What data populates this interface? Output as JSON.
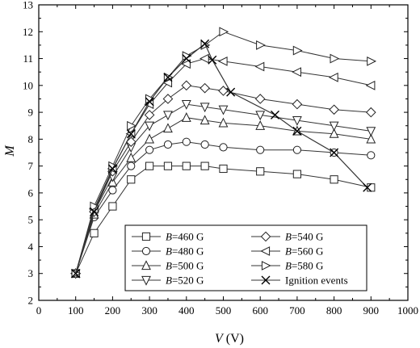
{
  "chart_data": {
    "type": "line",
    "xlabel_var": "V",
    "xlabel_unit": " (V)",
    "ylabel": "M",
    "xlim": [
      0,
      1000
    ],
    "ylim": [
      2,
      13
    ],
    "xticks": [
      0,
      100,
      200,
      300,
      400,
      500,
      600,
      700,
      800,
      900,
      1000
    ],
    "yticks": [
      2,
      3,
      4,
      5,
      6,
      7,
      8,
      9,
      10,
      11,
      12,
      13
    ],
    "grid": false,
    "legend_position": "bottom-center",
    "series": [
      {
        "var": "B",
        "name": "=460 G",
        "marker": "square",
        "x": [
          100,
          150,
          200,
          250,
          300,
          350,
          400,
          450,
          500,
          600,
          700,
          800,
          900
        ],
        "y": [
          3.0,
          4.5,
          5.5,
          6.5,
          7.0,
          7.0,
          7.0,
          7.0,
          6.9,
          6.8,
          6.7,
          6.5,
          6.2
        ]
      },
      {
        "var": "B",
        "name": "=480 G",
        "marker": "circle",
        "x": [
          100,
          150,
          200,
          250,
          300,
          350,
          400,
          450,
          500,
          600,
          700,
          800,
          900
        ],
        "y": [
          3.0,
          5.1,
          6.1,
          7.0,
          7.6,
          7.8,
          7.9,
          7.8,
          7.7,
          7.6,
          7.6,
          7.5,
          7.4
        ]
      },
      {
        "var": "B",
        "name": "=500 G",
        "marker": "triangle-up",
        "x": [
          100,
          150,
          200,
          250,
          300,
          350,
          400,
          450,
          500,
          600,
          700,
          800,
          900
        ],
        "y": [
          3.0,
          5.2,
          6.4,
          7.3,
          8.0,
          8.4,
          8.8,
          8.7,
          8.6,
          8.5,
          8.3,
          8.2,
          8.0
        ]
      },
      {
        "var": "B",
        "name": "=520 G",
        "marker": "triangle-down",
        "x": [
          100,
          150,
          200,
          250,
          300,
          350,
          400,
          450,
          500,
          600,
          700,
          800,
          900
        ],
        "y": [
          3.0,
          5.3,
          6.6,
          7.7,
          8.5,
          8.9,
          9.3,
          9.2,
          9.1,
          8.9,
          8.7,
          8.5,
          8.3
        ]
      },
      {
        "var": "B",
        "name": "=540 G",
        "marker": "diamond",
        "x": [
          100,
          150,
          200,
          250,
          300,
          350,
          400,
          450,
          500,
          600,
          700,
          800,
          900
        ],
        "y": [
          3.0,
          5.3,
          6.8,
          7.9,
          8.9,
          9.5,
          10.0,
          9.9,
          9.8,
          9.5,
          9.3,
          9.1,
          9.0
        ]
      },
      {
        "var": "B",
        "name": "=560 G",
        "marker": "triangle-left",
        "x": [
          100,
          150,
          200,
          250,
          300,
          350,
          400,
          450,
          500,
          600,
          700,
          800,
          900
        ],
        "y": [
          3.0,
          5.4,
          6.9,
          8.2,
          9.3,
          10.1,
          10.8,
          11.0,
          10.9,
          10.7,
          10.5,
          10.3,
          10.0
        ]
      },
      {
        "var": "B",
        "name": "=580 G",
        "marker": "triangle-right",
        "x": [
          100,
          150,
          200,
          250,
          300,
          350,
          400,
          450,
          500,
          600,
          700,
          800,
          900
        ],
        "y": [
          3.0,
          5.5,
          7.0,
          8.5,
          9.5,
          10.3,
          11.1,
          11.5,
          12.0,
          11.5,
          11.3,
          11.0,
          10.9
        ]
      },
      {
        "var": "",
        "name": "Ignition events",
        "marker": "x",
        "x": [
          100,
          150,
          200,
          250,
          300,
          350,
          400,
          450,
          470,
          520,
          640,
          700,
          800,
          890
        ],
        "y": [
          3.0,
          5.3,
          6.9,
          8.2,
          9.4,
          10.3,
          11.0,
          11.55,
          10.95,
          9.75,
          8.9,
          8.3,
          7.5,
          6.2
        ]
      }
    ]
  }
}
